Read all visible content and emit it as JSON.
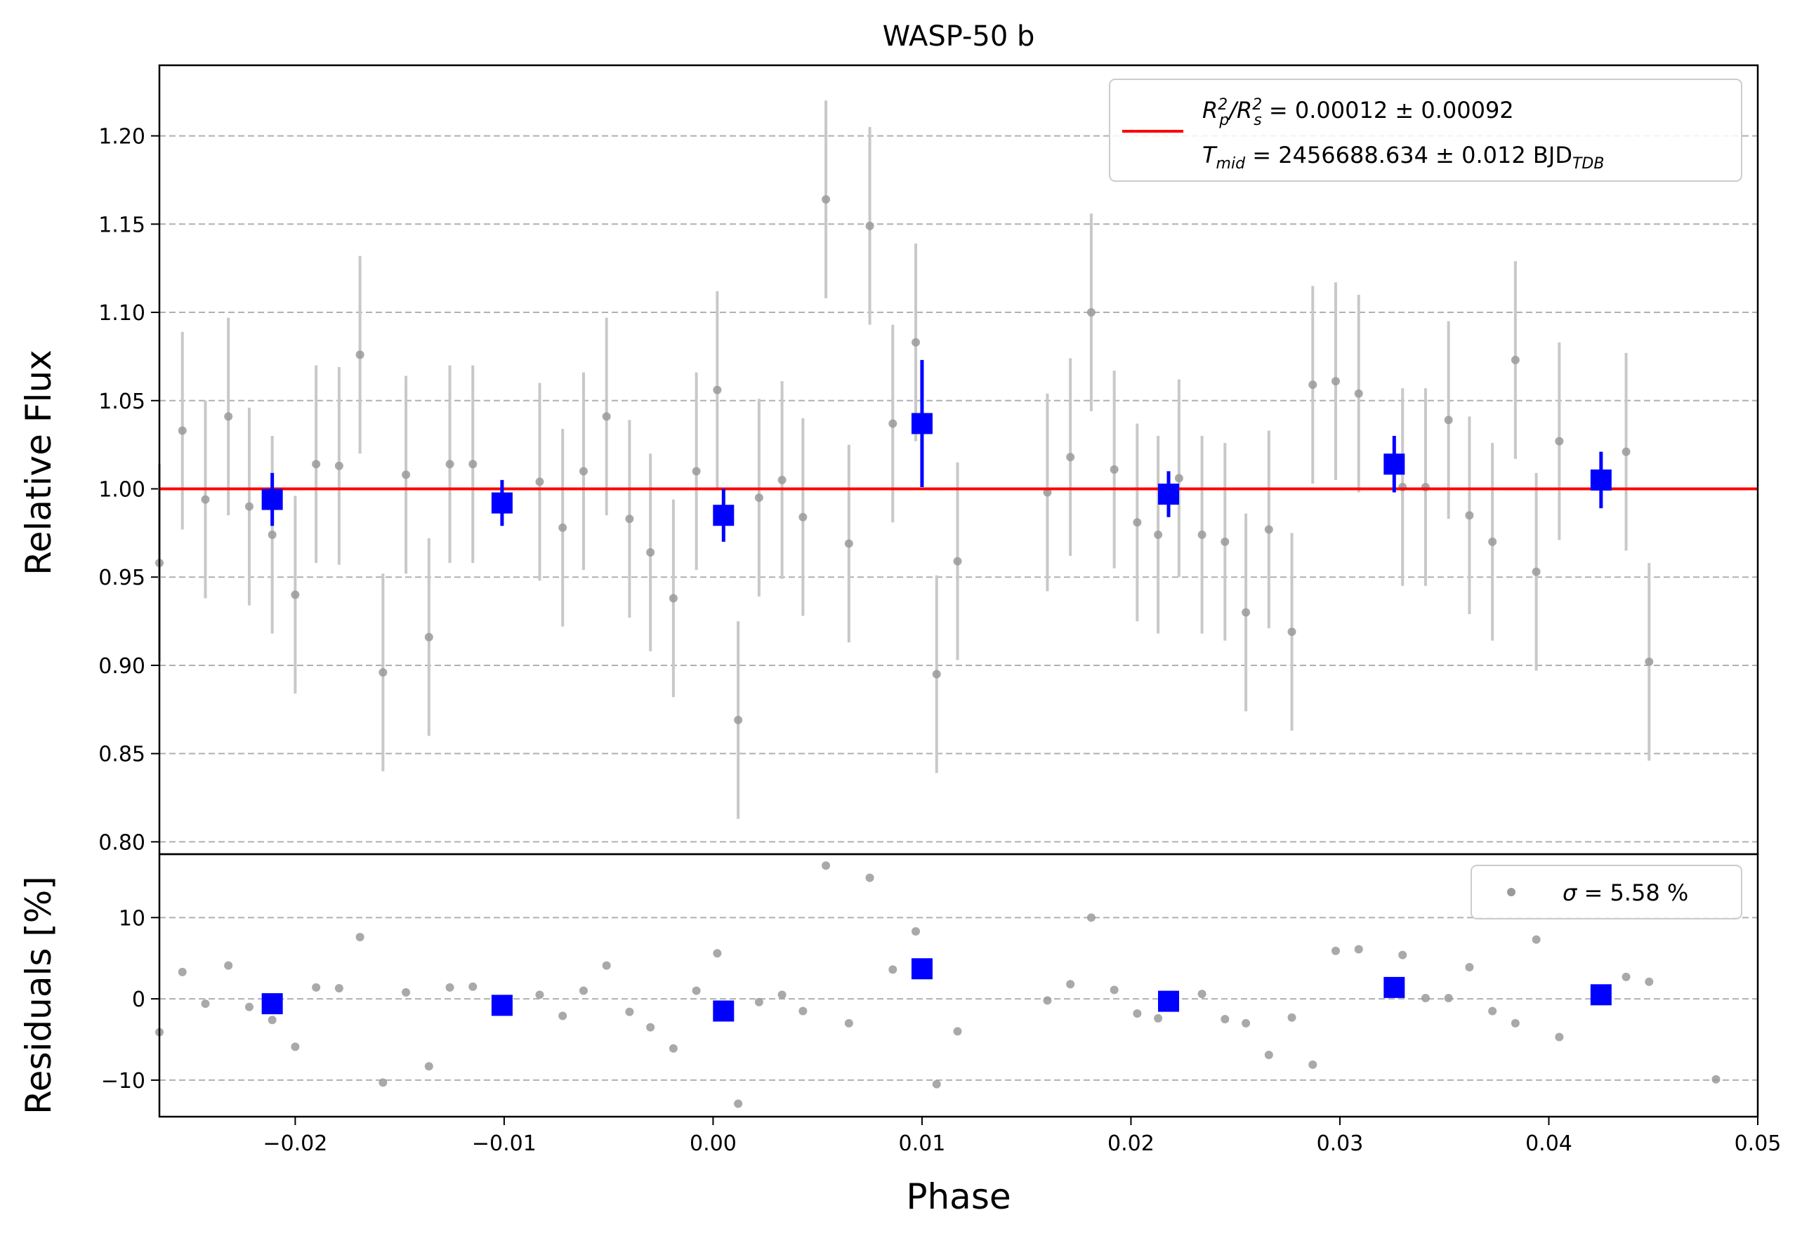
{
  "chart_data": {
    "type": "scatter",
    "title": "WASP-50 b",
    "xlabel": "Phase",
    "xlim": [
      -0.0265,
      0.05
    ],
    "xticks": [
      -0.02,
      -0.01,
      0.0,
      0.01,
      0.02,
      0.03,
      0.04,
      0.05
    ],
    "xtick_labels": [
      "−0.02",
      "−0.01",
      "0.00",
      "0.01",
      "0.02",
      "0.03",
      "0.04",
      "0.05"
    ],
    "grid": "horizontal dashed",
    "colors": {
      "raw": "#9a9a9a",
      "errorbar_raw": "#c8c8c8",
      "binned": "#0000ff",
      "model": "#ff0000"
    },
    "top_panel": {
      "ylabel": "Relative Flux",
      "ylim": [
        0.793,
        1.24
      ],
      "yticks": [
        0.8,
        0.85,
        0.9,
        0.95,
        1.0,
        1.05,
        1.1,
        1.15,
        1.2
      ],
      "ytick_labels": [
        "0.80",
        "0.85",
        "0.90",
        "0.95",
        "1.00",
        "1.05",
        "1.10",
        "1.15",
        "1.20"
      ],
      "legend": {
        "placement": "upper right",
        "line1_main": "R",
        "line1_p_sup": "2",
        "line1_p_sub": "p",
        "line1_mid": "/R",
        "line1_s_sup": "2",
        "line1_s_sub": "s",
        "line1_value": " = 0.00012 ± 0.00092",
        "line2_main": "T",
        "line2_sub": "mid",
        "line2_value": " = 2456688.634 ± 0.012 BJD",
        "line2_unit_sub": "TDB"
      },
      "model_line": {
        "y": 1.0
      },
      "raw": {
        "x": [
          -0.0265,
          -0.0254,
          -0.0243,
          -0.0232,
          -0.0222,
          -0.0211,
          -0.02,
          -0.019,
          -0.0179,
          -0.0169,
          -0.0158,
          -0.0147,
          -0.0136,
          -0.0126,
          -0.0115,
          -0.0104,
          -0.0094,
          -0.0083,
          -0.0072,
          -0.0062,
          -0.0051,
          -0.004,
          -0.003,
          -0.0019,
          -0.0008,
          0.0002,
          0.0012,
          0.0022,
          0.0033,
          0.0043,
          0.0054,
          0.0065,
          0.0075,
          0.0086,
          0.0097,
          0.0107,
          0.0117,
          0.016,
          0.0171,
          0.0181,
          0.0192,
          0.0203,
          0.0213,
          0.0223,
          0.0234,
          0.0245,
          0.0255,
          0.0266,
          0.0277,
          0.0287,
          0.0298,
          0.0309,
          0.033,
          0.0341,
          0.0352,
          0.0362,
          0.0373,
          0.0384,
          0.0394,
          0.0405,
          0.0437,
          0.0448,
          0.048,
          0.05
        ],
        "y": [
          0.958,
          1.033,
          0.994,
          1.041,
          0.99,
          0.974,
          0.94,
          1.014,
          1.013,
          1.076,
          0.896,
          1.008,
          0.916,
          1.014,
          1.014,
          null,
          null,
          1.004,
          0.978,
          1.01,
          1.041,
          0.983,
          0.964,
          0.938,
          1.01,
          1.056,
          0.869,
          0.995,
          1.005,
          0.984,
          1.164,
          0.969,
          1.149,
          1.037,
          1.083,
          0.895,
          0.959,
          0.998,
          1.018,
          1.1,
          1.011,
          0.981,
          0.974,
          1.006,
          0.974,
          0.97,
          0.93,
          0.977,
          0.919,
          1.059,
          1.061,
          1.054,
          1.001,
          1.001,
          1.039,
          0.985,
          0.97,
          1.073,
          0.953,
          1.027,
          1.021,
          0.902,
          null,
          null
        ],
        "yerr": 0.056
      },
      "binned": {
        "x": [
          -0.0211,
          -0.0101,
          0.0005,
          0.01,
          0.0218,
          0.0326,
          0.0425
        ],
        "y": [
          0.994,
          0.992,
          0.985,
          1.037,
          0.997,
          1.014,
          1.005
        ],
        "yerr": [
          0.015,
          0.013,
          0.015,
          0.036,
          0.013,
          0.016,
          0.016
        ]
      }
    },
    "bottom_panel": {
      "ylabel": "Residuals [%]",
      "ylim": [
        -14.5,
        17.8
      ],
      "yticks": [
        -10,
        0,
        10
      ],
      "ytick_labels": [
        "−10",
        "0",
        "10"
      ],
      "legend": {
        "placement": "upper right",
        "label_symbol": "σ",
        "label_value": " = 5.58 %"
      },
      "raw": {
        "x": [
          -0.0265,
          -0.0254,
          -0.0243,
          -0.0232,
          -0.0222,
          -0.0211,
          -0.02,
          -0.019,
          -0.0179,
          -0.0169,
          -0.0158,
          -0.0147,
          -0.0136,
          -0.0126,
          -0.0115,
          -0.0104,
          -0.0094,
          -0.0083,
          -0.0072,
          -0.0062,
          -0.0051,
          -0.004,
          -0.003,
          -0.0019,
          -0.0008,
          0.0002,
          0.0012,
          0.0022,
          0.0033,
          0.0043,
          0.0054,
          0.0065,
          0.0075,
          0.0086,
          0.0097,
          0.0107,
          0.0117,
          0.016,
          0.0171,
          0.0181,
          0.0192,
          0.0203,
          0.0213,
          0.0218,
          0.0223,
          0.0234,
          0.0245,
          0.0255,
          0.0266,
          0.0277,
          0.0287,
          0.0298,
          0.0309,
          0.033,
          0.0341,
          0.0352,
          0.0362,
          0.0373,
          0.0384,
          0.0394,
          0.0405,
          0.0437,
          0.0448,
          0.048,
          0.05
        ],
        "y": [
          -4.1,
          3.3,
          -0.6,
          4.1,
          -1.0,
          -2.6,
          -5.9,
          1.4,
          1.3,
          7.6,
          -10.3,
          0.8,
          -8.3,
          1.4,
          1.5,
          null,
          null,
          0.5,
          -2.1,
          1.0,
          4.1,
          -1.6,
          -3.5,
          -6.1,
          1.0,
          5.6,
          -12.9,
          -0.4,
          0.5,
          -1.5,
          16.4,
          -3.0,
          14.9,
          3.6,
          8.3,
          -10.5,
          -4.0,
          -0.2,
          1.8,
          10.0,
          1.1,
          -1.8,
          -2.4,
          null,
          null,
          0.6,
          -2.5,
          -3.0,
          -6.9,
          -2.3,
          -8.1,
          5.9,
          6.1,
          5.4,
          0.1,
          0.1,
          3.9,
          -1.5,
          -3.0,
          7.3,
          -4.7,
          2.7,
          2.1,
          -9.9,
          null
        ],
        "yerr": null
      },
      "binned": {
        "x": [
          -0.0211,
          -0.0101,
          0.0005,
          0.01,
          0.0218,
          0.0326,
          0.0425
        ],
        "y": [
          -0.6,
          -0.8,
          -1.5,
          3.7,
          -0.3,
          1.4,
          0.5
        ]
      }
    }
  }
}
